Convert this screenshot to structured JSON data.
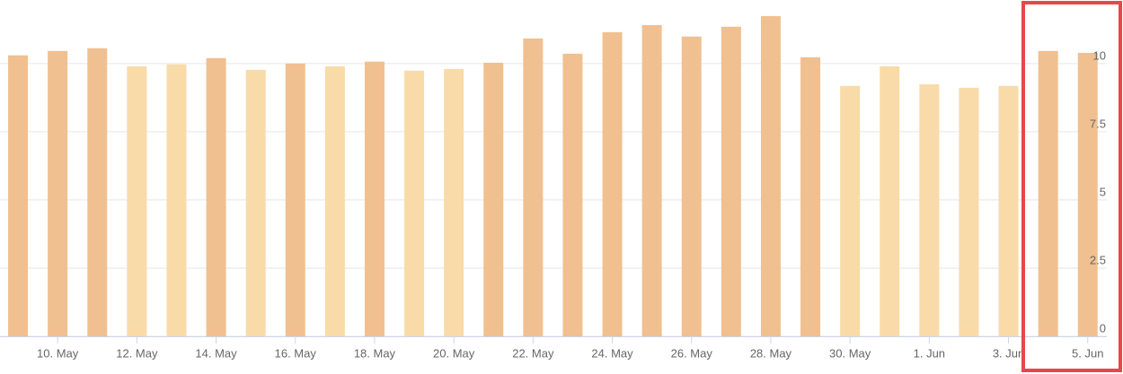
{
  "chart_data": {
    "type": "bar",
    "categories": [
      null,
      "10. May",
      null,
      "12. May",
      null,
      "14. May",
      null,
      "16. May",
      null,
      "18. May",
      null,
      "20. May",
      null,
      "22. May",
      null,
      "24. May",
      null,
      "26. May",
      null,
      "28. May",
      null,
      "30. May",
      null,
      "1. Jun",
      null,
      "3. Jun",
      null,
      "5. Jun"
    ],
    "values": [
      10.3,
      10.46,
      10.56,
      9.9,
      9.97,
      10.2,
      9.77,
      10.0,
      9.9,
      10.07,
      9.74,
      9.8,
      10.03,
      10.92,
      10.36,
      11.15,
      11.41,
      10.99,
      11.35,
      11.74,
      10.23,
      9.18,
      9.9,
      9.24,
      9.11,
      9.18,
      10.46,
      10.39
    ],
    "colors": [
      "#f0c090",
      "#f0c090",
      "#f0c090",
      "#f8dba8",
      "#f8dba8",
      "#f0c090",
      "#f8dba8",
      "#f0c090",
      "#f8dba8",
      "#f0c090",
      "#f8dba8",
      "#f8dba8",
      "#f0c090",
      "#f0c090",
      "#f0c090",
      "#f0c090",
      "#f0c090",
      "#f0c090",
      "#f0c090",
      "#f0c090",
      "#f0c090",
      "#f8dba8",
      "#f8dba8",
      "#f8dba8",
      "#f8dba8",
      "#f8dba8",
      "#f0c090",
      "#f0c090"
    ],
    "ylim": [
      0,
      12
    ],
    "yticks": [
      0,
      2.5,
      5,
      7.5,
      10
    ],
    "grid": true
  }
}
